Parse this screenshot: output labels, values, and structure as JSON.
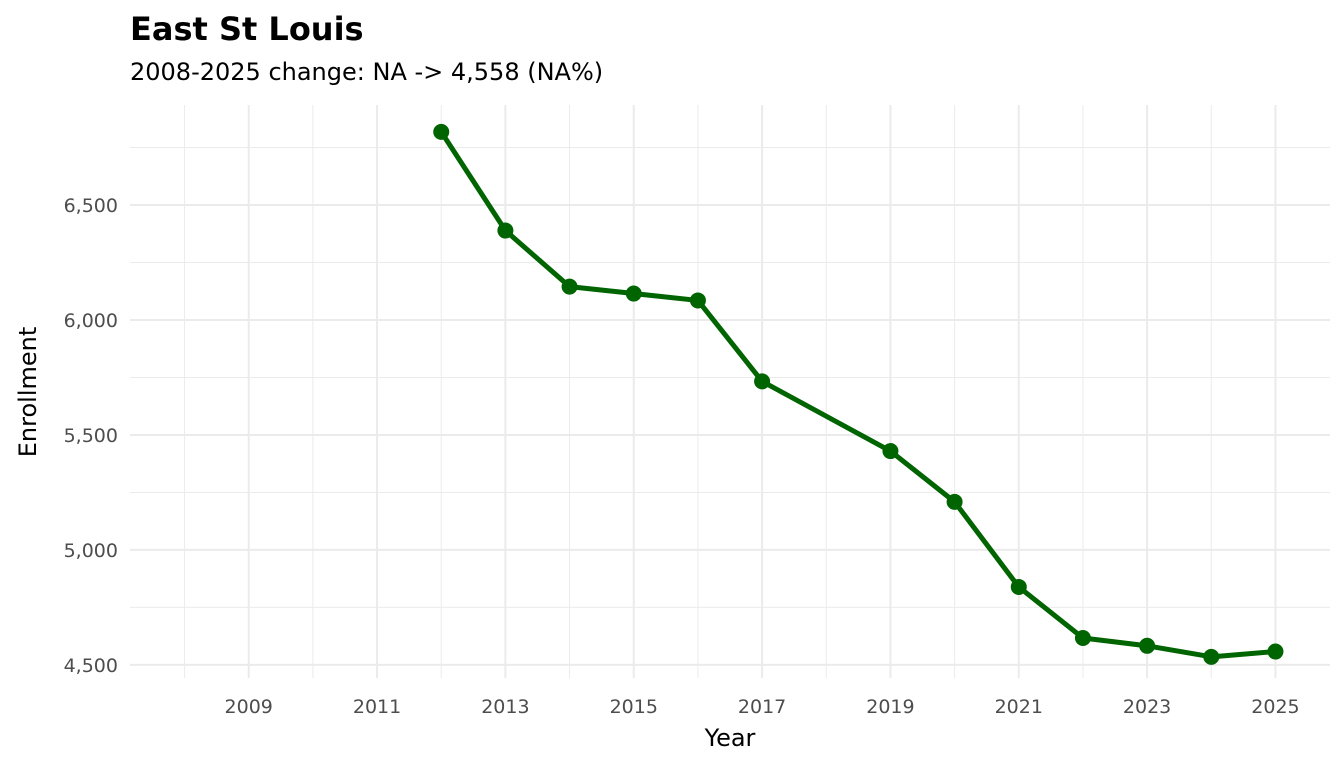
{
  "chart_data": {
    "type": "line",
    "title": "East St Louis",
    "subtitle": "2008-2025 change: NA -> 4,558 (NA%)",
    "xlabel": "Year",
    "ylabel": "Enrollment",
    "xlim": [
      2007.15,
      2025.85
    ],
    "ylim": [
      4443,
      6935
    ],
    "x_ticks": [
      2009,
      2011,
      2013,
      2015,
      2017,
      2019,
      2021,
      2023,
      2025
    ],
    "y_ticks": [
      4500,
      5000,
      5500,
      6000,
      6500
    ],
    "y_tick_labels": [
      "4,500",
      "5,000",
      "5,500",
      "6,000",
      "6,500"
    ],
    "grid": true,
    "color": "#006400",
    "x": [
      2012,
      2013,
      2014,
      2015,
      2016,
      2017,
      2019,
      2020,
      2021,
      2022,
      2023,
      2024,
      2025
    ],
    "y": [
      6818,
      6389,
      6145,
      6115,
      6085,
      5733,
      5430,
      5209,
      4839,
      4617,
      4583,
      4535,
      4558
    ]
  }
}
